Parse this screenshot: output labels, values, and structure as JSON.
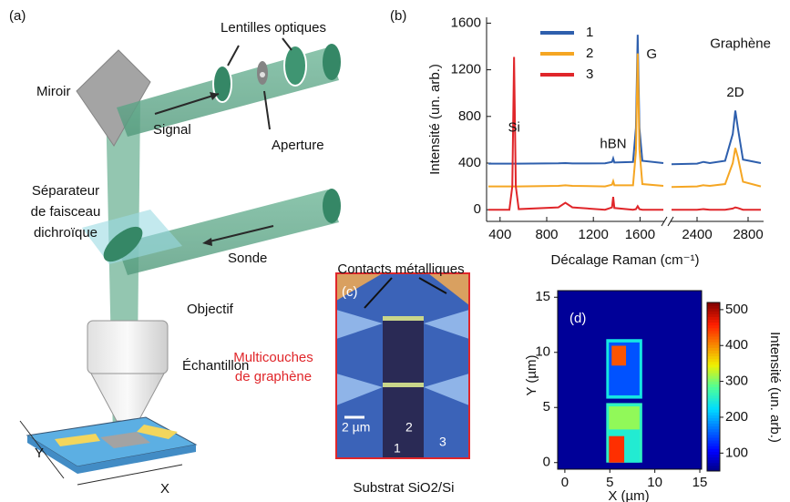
{
  "diagram": {
    "panel": "(a)",
    "lenses": "Lentilles optiques",
    "mirror": "Miroir",
    "signal": "Signal",
    "aperture": "Aperture",
    "splitter": [
      "Séparateur",
      "de faisceau",
      "dichroïque"
    ],
    "probe": "Sonde",
    "objective": "Objectif",
    "sample": "Échantillon",
    "axis_y": "Y",
    "axis_x": "X"
  },
  "micrograph": {
    "panel": "(c)",
    "contacts": "Contacts métalliques",
    "graphene": [
      "Multicouches",
      "de graphène"
    ],
    "scale": "2 µm",
    "points": [
      "1",
      "2",
      "3"
    ],
    "substrate": "Substrat SiO2/Si"
  },
  "chart_data": [
    {
      "type": "line",
      "panel": "(b)",
      "ylabel": "Intensité (un. arb.)",
      "xlabel": "Décalage Raman (cm⁻¹)",
      "x": [
        300,
        480,
        505,
        520,
        535,
        560,
        900,
        960,
        1020,
        1300,
        1360,
        1370,
        1380,
        1540,
        1565,
        1580,
        1595,
        1620,
        1800,
        2000,
        2200,
        2400,
        2450,
        2500,
        2620,
        2680,
        2700,
        2720,
        2760,
        2900
      ],
      "series": [
        {
          "name": "1",
          "color": "#2e5fad",
          "values": [
            395,
            395,
            395,
            395,
            395,
            395,
            398,
            400,
            397,
            398,
            410,
            440,
            405,
            410,
            700,
            1500,
            700,
            420,
            400,
            null,
            390,
            395,
            410,
            400,
            420,
            650,
            850,
            700,
            430,
            400
          ]
        },
        {
          "name": "2",
          "color": "#f5a623",
          "values": [
            200,
            200,
            200,
            200,
            200,
            200,
            205,
            210,
            205,
            200,
            215,
            245,
            210,
            210,
            500,
            1340,
            520,
            220,
            205,
            null,
            195,
            200,
            210,
            205,
            220,
            400,
            530,
            450,
            240,
            200
          ]
        },
        {
          "name": "3",
          "color": "#e0262a",
          "values": [
            0,
            0,
            200,
            1310,
            200,
            5,
            20,
            60,
            20,
            0,
            20,
            110,
            15,
            0,
            5,
            30,
            5,
            0,
            0,
            null,
            0,
            0,
            5,
            0,
            0,
            10,
            20,
            15,
            0,
            0
          ]
        }
      ],
      "xlim": [
        [
          300,
          1800
        ],
        [
          2200,
          2900
        ]
      ],
      "xticks": [
        400,
        800,
        1200,
        1600,
        2400,
        2800
      ],
      "ylim": [
        -100,
        1650
      ],
      "yticks": [
        0,
        400,
        800,
        1200,
        1600
      ],
      "annotations": [
        {
          "text": "Si",
          "x": 520,
          "y": 700
        },
        {
          "text": "hBN",
          "x": 1370,
          "y": 560
        },
        {
          "text": "G",
          "x": 1700,
          "y": 1330
        },
        {
          "text": "Graphène",
          "x": 2740,
          "y": 1420
        },
        {
          "text": "2D",
          "x": 2700,
          "y": 1000
        }
      ],
      "legend": "top-left"
    },
    {
      "type": "heatmap",
      "panel": "(d)",
      "xlabel": "X (µm)",
      "ylabel": "Y (µm)",
      "zlabel": "Intensité (un. arb.)",
      "xlim": [
        -0.8,
        15.2
      ],
      "xticks": [
        0,
        5,
        10,
        15
      ],
      "ylim": [
        -0.6,
        15.6
      ],
      "yticks": [
        0,
        5,
        10,
        15
      ],
      "zlim": [
        50,
        520
      ],
      "zticks": [
        100,
        200,
        300,
        400,
        500
      ],
      "background": 60,
      "regions": [
        {
          "x": [
            4.6,
            8.6
          ],
          "y": [
            5.8,
            11.2
          ],
          "value": 240
        },
        {
          "x": [
            4.9,
            8.3
          ],
          "y": [
            6.1,
            10.9
          ],
          "value": 150
        },
        {
          "x": [
            5.2,
            6.8
          ],
          "y": [
            8.8,
            10.6
          ],
          "value": 430
        },
        {
          "x": [
            4.6,
            8.6
          ],
          "y": [
            0,
            5.4
          ],
          "value": 260
        },
        {
          "x": [
            4.9,
            8.3
          ],
          "y": [
            3,
            5.1
          ],
          "value": 310
        },
        {
          "x": [
            4.9,
            8.3
          ],
          "y": [
            0,
            3
          ],
          "value": 250
        },
        {
          "x": [
            4.9,
            6.6
          ],
          "y": [
            0,
            2.4
          ],
          "value": 450
        }
      ]
    }
  ]
}
